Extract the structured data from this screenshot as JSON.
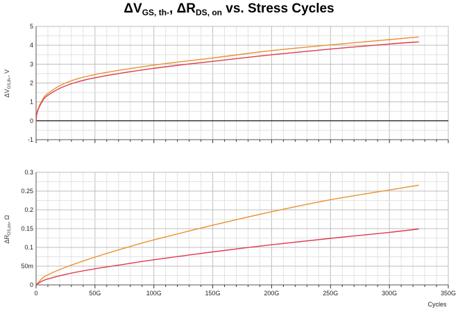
{
  "title": {
    "part1": "ΔV",
    "part1_sub": "GS, th-",
    "sep": ", ",
    "part2": "ΔR",
    "part2_sub": "DS, on",
    "part3": " vs. Stress Cycles"
  },
  "colors": {
    "orange": "#e8912e",
    "red": "#de3a4c",
    "grid": "#d2d2d2",
    "zero": "#000000",
    "frame": "#808080"
  },
  "chart_data": [
    {
      "type": "line",
      "ylabel": {
        "main": "ΔV",
        "sub": "GS,th-",
        "unit": ", V"
      },
      "xlabel": "",
      "ylim": [
        -1,
        5
      ],
      "xlim": [
        0,
        350
      ],
      "x_unit": "G cycles",
      "yticks": [
        "-1",
        "0",
        "1",
        "2",
        "3",
        "4",
        "5"
      ],
      "grid": true,
      "series": [
        {
          "color": "orange",
          "x": [
            0,
            1,
            5,
            10,
            25,
            50,
            100,
            150,
            200,
            250,
            300,
            325
          ],
          "y": [
            0,
            0.49,
            1.07,
            1.45,
            2.0,
            2.45,
            2.95,
            3.33,
            3.72,
            4.02,
            4.3,
            4.44
          ]
        },
        {
          "color": "red",
          "x": [
            0,
            1,
            5,
            10,
            25,
            50,
            100,
            150,
            200,
            250,
            300,
            325
          ],
          "y": [
            0,
            0.46,
            1.0,
            1.35,
            1.85,
            2.28,
            2.78,
            3.15,
            3.5,
            3.8,
            4.07,
            4.18
          ]
        }
      ]
    },
    {
      "type": "line",
      "ylabel": {
        "main": "ΔR",
        "sub": "DS,on",
        "unit": ", Ω"
      },
      "xlabel": "Cycles",
      "ylim": [
        0,
        0.3
      ],
      "xlim": [
        0,
        350
      ],
      "x_unit": "G cycles",
      "yticks": [
        "0",
        "50m",
        "0.1",
        "0.15",
        "0.2",
        "0.25",
        "0.3"
      ],
      "xticks": [
        "0",
        "50G",
        "100G",
        "150G",
        "200G",
        "250G",
        "300G",
        "350G"
      ],
      "grid": true,
      "series": [
        {
          "color": "orange",
          "x": [
            0,
            5,
            10,
            25,
            50,
            75,
            100,
            150,
            200,
            250,
            300,
            325
          ],
          "y": [
            0,
            0.017,
            0.027,
            0.047,
            0.074,
            0.098,
            0.12,
            0.159,
            0.195,
            0.227,
            0.253,
            0.266
          ]
        },
        {
          "color": "red",
          "x": [
            0,
            5,
            10,
            25,
            50,
            75,
            100,
            150,
            200,
            250,
            300,
            325
          ],
          "y": [
            0,
            0.01,
            0.016,
            0.028,
            0.043,
            0.055,
            0.067,
            0.088,
            0.107,
            0.124,
            0.14,
            0.149
          ]
        }
      ]
    }
  ]
}
